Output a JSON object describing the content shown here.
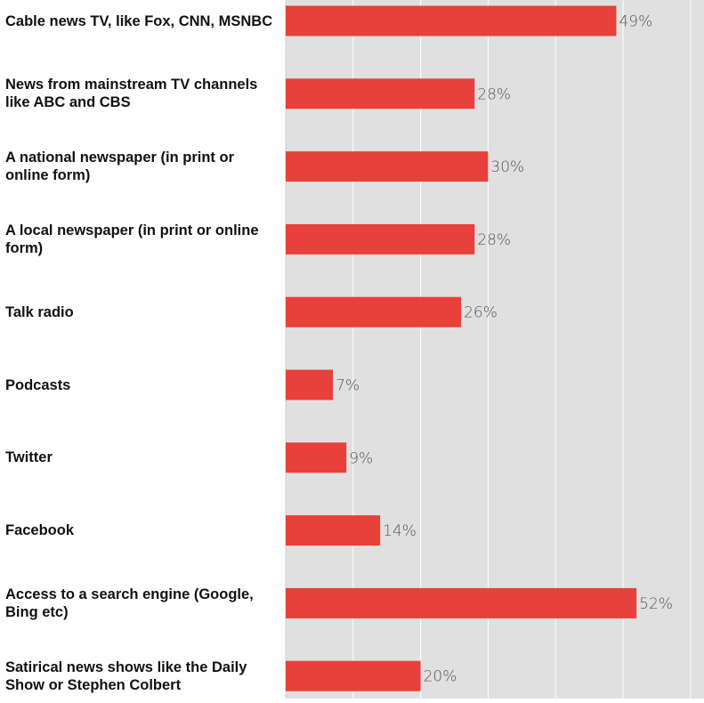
{
  "chart_data": {
    "type": "bar",
    "orientation": "horizontal",
    "categories": [
      "Cable news TV, like Fox, CNN, MSNBC",
      "News from mainstream TV channels like ABC and CBS",
      "A national newspaper (in print or online form)",
      "A local newspaper (in print or online form)",
      "Talk radio",
      "Podcasts",
      "Twitter",
      "Facebook",
      "Access to a search engine (Google, Bing etc)",
      "Satirical news shows like the Daily Show or Stephen Colbert"
    ],
    "values": [
      49,
      28,
      30,
      28,
      26,
      7,
      9,
      14,
      52,
      20
    ],
    "value_labels": [
      "49%",
      "28%",
      "30%",
      "28%",
      "26%",
      "7%",
      "9%",
      "14%",
      "52%",
      "20%"
    ],
    "color": "#e8403a",
    "xlim": [
      0,
      62
    ],
    "xticks": [
      0,
      10,
      20,
      30,
      40,
      50,
      60
    ],
    "grid": true
  }
}
